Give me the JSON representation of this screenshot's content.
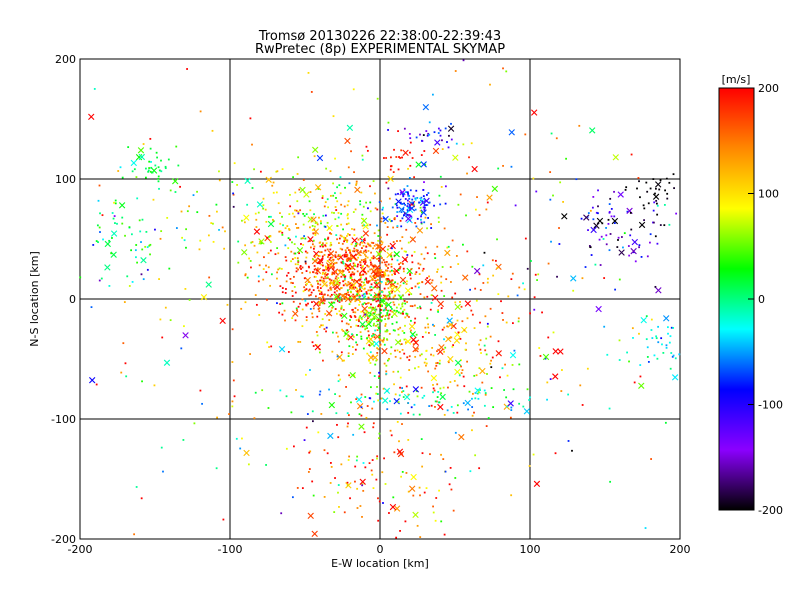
{
  "title_line1": "Tromsø 20130226 22:38:00-22:39:43",
  "title_line2": "RwPretec (8p) EXPERIMENTAL SKYMAP",
  "chart_data": {
    "type": "scatter",
    "xlabel": "E-W location [km]",
    "ylabel": "N-S location [km]",
    "xlim": [
      -200,
      200
    ],
    "ylim": [
      -200,
      200
    ],
    "xticks": [
      "-200",
      "-100",
      "0",
      "100",
      "200"
    ],
    "yticks": [
      "-200",
      "-100",
      "0",
      "100",
      "200"
    ],
    "grid": true,
    "marker_styles": [
      "dot",
      "x"
    ],
    "colorbar": {
      "label": "[m/s]",
      "range": [
        -200,
        200
      ],
      "ticks": [
        "200",
        "100",
        "0",
        "-100",
        "-200"
      ],
      "colormap": [
        "#000000",
        "#8b00ff",
        "#0000ff",
        "#00ffff",
        "#00ff00",
        "#ffff00",
        "#ff8800",
        "#ff0000"
      ]
    },
    "clusters": [
      {
        "x": -20,
        "y": 20,
        "sx": 22,
        "sy": 18,
        "n": 650,
        "v": 170,
        "vs": 35
      },
      {
        "x": 20,
        "y": -25,
        "sx": 40,
        "sy": 35,
        "n": 420,
        "v": 140,
        "vs": 50
      },
      {
        "x": -40,
        "y": 60,
        "sx": 40,
        "sy": 25,
        "n": 320,
        "v": 90,
        "vs": 50
      },
      {
        "x": 0,
        "y": -10,
        "sx": 15,
        "sy": 15,
        "n": 180,
        "v": 40,
        "vs": 30
      },
      {
        "x": 20,
        "y": 78,
        "sx": 10,
        "sy": 8,
        "n": 110,
        "v": -80,
        "vs": 30
      },
      {
        "x": 30,
        "y": -85,
        "sx": 45,
        "sy": 6,
        "n": 90,
        "v": -15,
        "vs": 40
      },
      {
        "x": 185,
        "y": -38,
        "sx": 12,
        "sy": 12,
        "n": 40,
        "v": -30,
        "vs": 20
      },
      {
        "x": 160,
        "y": 60,
        "sx": 25,
        "sy": 15,
        "n": 90,
        "v": -140,
        "vs": 50
      },
      {
        "x": 185,
        "y": 90,
        "sx": 10,
        "sy": 8,
        "n": 30,
        "v": -200,
        "vs": 10
      },
      {
        "x": 35,
        "y": 135,
        "sx": 8,
        "sy": 5,
        "n": 28,
        "v": -110,
        "vs": 40
      },
      {
        "x": 12,
        "y": 115,
        "sx": 8,
        "sy": 8,
        "n": 25,
        "v": 190,
        "vs": 20
      },
      {
        "x": -150,
        "y": 110,
        "sx": 10,
        "sy": 10,
        "n": 40,
        "v": 20,
        "vs": 20
      },
      {
        "x": -175,
        "y": 50,
        "sx": 15,
        "sy": 20,
        "n": 55,
        "v": 10,
        "vs": 40
      },
      {
        "x": 0,
        "y": -150,
        "sx": 30,
        "sy": 25,
        "n": 100,
        "v": 150,
        "vs": 60
      },
      {
        "x": 0,
        "y": 0,
        "sx": 120,
        "sy": 100,
        "n": 450,
        "v": 60,
        "vs": 120
      }
    ]
  }
}
